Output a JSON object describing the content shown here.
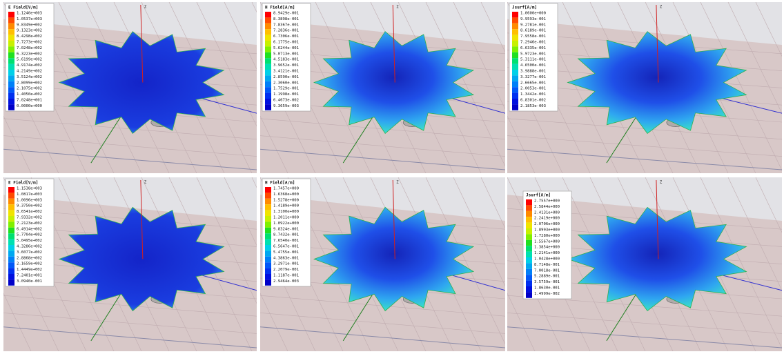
{
  "panels": [
    {
      "legend_title": "E Field[V/m]",
      "axis_label": "Z",
      "legend_labels": [
        "1.1240e+003",
        "1.0537e+003",
        "9.8349e+002",
        "9.1323e+002",
        "8.4298e+002",
        "7.7273e+002",
        "7.0248e+002",
        "6.3223e+002",
        "5.6199e+002",
        "4.9174e+002",
        "4.2149e+002",
        "3.5124e+002",
        "2.8099e+002",
        "2.1075e+002",
        "1.4050e+002",
        "7.0248e+001",
        "0.0000e+000"
      ]
    },
    {
      "legend_title": "H Field[A/m]",
      "axis_label": "Z",
      "legend_labels": [
        "8.9429e-001",
        "8.3898e-001",
        "7.8367e-001",
        "7.2836e-001",
        "6.7306e-001",
        "6.1775e-001",
        "5.6244e-001",
        "5.0713e-001",
        "4.5183e-001",
        "3.9652e-001",
        "3.4121e-001",
        "2.8590e-001",
        "2.3060e-001",
        "1.7529e-001",
        "1.1998e-001",
        "6.4673e-002",
        "9.3659e-003"
      ]
    },
    {
      "legend_title": "Jsurf[A/m]",
      "axis_label": "Z",
      "legend_labels": [
        "1.0600e+000",
        "9.9593e-001",
        "9.2781e-001",
        "8.6189e-001",
        "7.9558e-001",
        "7.2946e-001",
        "6.6335e-001",
        "5.9723e-001",
        "5.3111e-001",
        "4.6500e-001",
        "3.9888e-001",
        "3.3277e-001",
        "2.6665e-001",
        "2.0053e-001",
        "1.3442e-001",
        "6.8301e-002",
        "2.1853e-003"
      ]
    },
    {
      "legend_title": "E Field[V/m]",
      "axis_label": "Z",
      "legend_labels": [
        "1.1538e+003",
        "1.0817e+003",
        "1.0096e+003",
        "9.3750e+002",
        "8.6541e+002",
        "7.9332e+002",
        "7.2123e+002",
        "6.4914e+002",
        "5.7704e+002",
        "5.0495e+002",
        "4.3286e+002",
        "3.6077e+002",
        "2.8868e+002",
        "2.1659e+002",
        "1.4449e+002",
        "7.2401e+001",
        "3.0940e-001"
      ]
    },
    {
      "legend_title": "H Field[A/m]",
      "axis_label": "Z",
      "legend_labels": [
        "1.7457e+000",
        "1.6368e+000",
        "1.5278e+000",
        "1.4189e+000",
        "1.3100e+000",
        "1.2011e+000",
        "1.0922e+000",
        "9.8324e-001",
        "8.7432e-001",
        "7.6540e-001",
        "6.5647e-001",
        "5.4755e-001",
        "4.3863e-001",
        "3.2971e-001",
        "2.2079e-001",
        "1.1187e-001",
        "2.9464e-003"
      ]
    },
    {
      "legend_title": "Jsurf[A/m]",
      "axis_label": "Z",
      "legend_labels": [
        "2.7557e+000",
        "2.5844e+000",
        "2.4131e+000",
        "2.2419e+000",
        "2.0706e+000",
        "1.8993e+000",
        "1.7280e+000",
        "1.5567e+000",
        "1.3854e+000",
        "1.2141e+000",
        "1.0428e+000",
        "8.7148e-001",
        "7.0018e-001",
        "5.2889e-001",
        "3.5759e-001",
        "1.8630e-001",
        "1.4999e-002"
      ]
    }
  ]
}
